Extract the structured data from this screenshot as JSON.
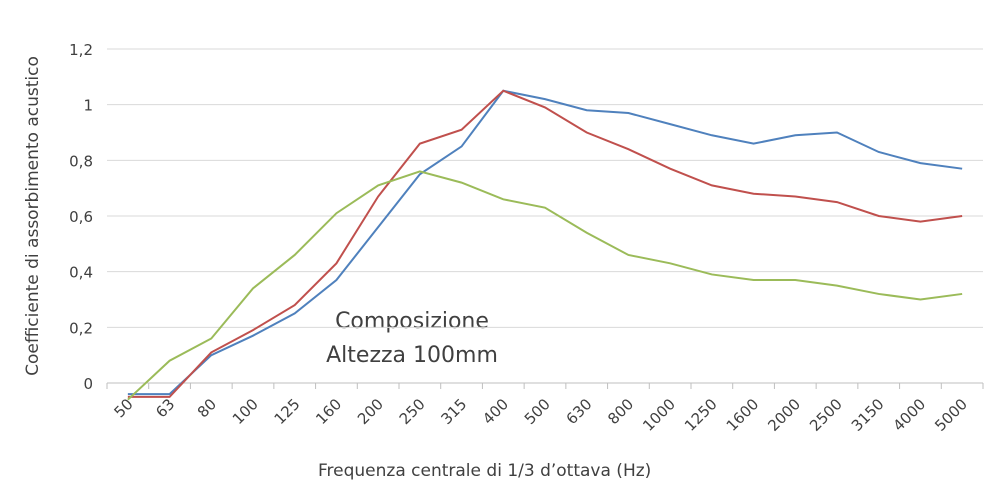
{
  "chart_data": {
    "type": "line",
    "x_label": "Frequenza centrale di 1/3 d’ottava (Hz)",
    "y_label": "Coefficiente di assorbimento acustico",
    "annotations": [
      "Composizione",
      "Altezza 100mm"
    ],
    "categories": [
      "50",
      "63",
      "80",
      "100",
      "125",
      "160",
      "200",
      "250",
      "315",
      "400",
      "500",
      "630",
      "800",
      "1000",
      "1250",
      "1600",
      "2000",
      "2500",
      "3150",
      "4000",
      "5000"
    ],
    "series": [
      {
        "color": "#4f81bd",
        "values": [
          -0.04,
          -0.04,
          0.1,
          0.17,
          0.25,
          0.37,
          0.56,
          0.75,
          0.85,
          1.05,
          1.02,
          0.98,
          0.97,
          0.93,
          0.89,
          0.86,
          0.89,
          0.9,
          0.83,
          0.79,
          0.77
        ]
      },
      {
        "color": "#c0504d",
        "values": [
          -0.05,
          -0.05,
          0.11,
          0.19,
          0.28,
          0.43,
          0.67,
          0.86,
          0.91,
          1.05,
          0.99,
          0.9,
          0.84,
          0.77,
          0.71,
          0.68,
          0.67,
          0.65,
          0.6,
          0.58,
          0.6
        ]
      },
      {
        "color": "#9bbb59",
        "values": [
          -0.06,
          0.08,
          0.16,
          0.34,
          0.46,
          0.61,
          0.71,
          0.76,
          0.72,
          0.66,
          0.63,
          0.54,
          0.46,
          0.43,
          0.39,
          0.37,
          0.37,
          0.35,
          0.32,
          0.3,
          0.32
        ]
      }
    ],
    "ylim": [
      0,
      1.2
    ],
    "yticks": [
      0,
      {
        "value": 0.2,
        "label": "0,2"
      },
      {
        "value": 0.4,
        "label": "0,4"
      },
      {
        "value": 0.6,
        "label": "0,6"
      },
      {
        "value": 0.8,
        "label": "0,8"
      },
      1,
      {
        "value": 1.2,
        "label": "1,2"
      }
    ],
    "grid": true
  }
}
